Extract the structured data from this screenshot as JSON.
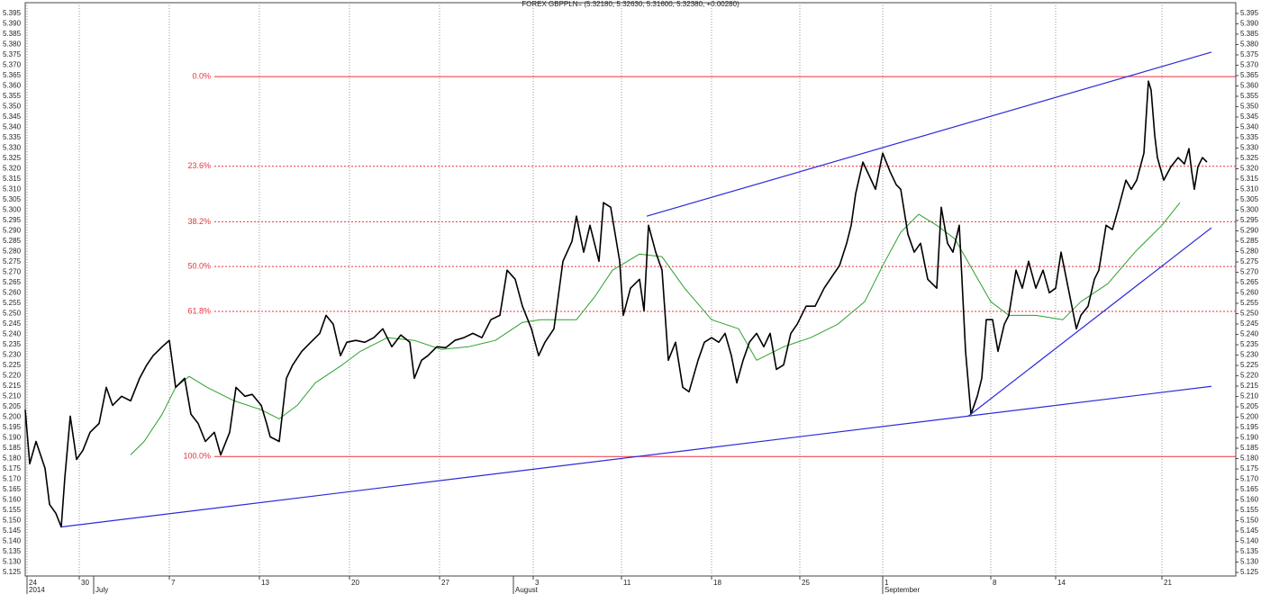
{
  "chart_data": {
    "type": "line",
    "title": "FOREX GBPPLN= (5.32180, 5.32630, 5.31600, 5.32380, +0.00280)",
    "xlim": [
      0,
      134.4
    ],
    "ylim": [
      5.1233,
      5.4002
    ],
    "xticks": [
      {
        "value": 0.2,
        "label": "24"
      },
      {
        "value": 6.0,
        "label": "30"
      },
      {
        "value": 16.0,
        "label": "7"
      },
      {
        "value": 26.0,
        "label": "13"
      },
      {
        "value": 36.0,
        "label": "20"
      },
      {
        "value": 46.0,
        "label": "27"
      },
      {
        "value": 56.4,
        "label": "3"
      },
      {
        "value": 66.2,
        "label": "11"
      },
      {
        "value": 76.2,
        "label": "18"
      },
      {
        "value": 86.0,
        "label": "25"
      },
      {
        "value": 95.2,
        "label": "1"
      },
      {
        "value": 107.2,
        "label": "8"
      },
      {
        "value": 114.4,
        "label": "14"
      },
      {
        "value": 126.2,
        "label": "21"
      }
    ],
    "month_ticks": [
      {
        "value": 0.2,
        "label": "2014"
      },
      {
        "value": 7.6,
        "label": "July"
      },
      {
        "value": 54.2,
        "label": "August"
      },
      {
        "value": 95.2,
        "label": "September"
      }
    ],
    "yticks": [
      {
        "value": 5.125,
        "label": "5.125"
      },
      {
        "value": 5.13,
        "label": "5.130"
      },
      {
        "value": 5.135,
        "label": "5.135"
      },
      {
        "value": 5.14,
        "label": "5.140"
      },
      {
        "value": 5.145,
        "label": "5.145"
      },
      {
        "value": 5.15,
        "label": "5.150"
      },
      {
        "value": 5.155,
        "label": "5.155"
      },
      {
        "value": 5.16,
        "label": "5.160"
      },
      {
        "value": 5.165,
        "label": "5.165"
      },
      {
        "value": 5.17,
        "label": "5.170"
      },
      {
        "value": 5.175,
        "label": "5.175"
      },
      {
        "value": 5.18,
        "label": "5.180"
      },
      {
        "value": 5.185,
        "label": "5.185"
      },
      {
        "value": 5.19,
        "label": "5.190"
      },
      {
        "value": 5.195,
        "label": "5.195"
      },
      {
        "value": 5.2,
        "label": "5.200"
      },
      {
        "value": 5.205,
        "label": "5.205"
      },
      {
        "value": 5.21,
        "label": "5.210"
      },
      {
        "value": 5.215,
        "label": "5.215"
      },
      {
        "value": 5.22,
        "label": "5.220"
      },
      {
        "value": 5.225,
        "label": "5.225"
      },
      {
        "value": 5.23,
        "label": "5.230"
      },
      {
        "value": 5.235,
        "label": "5.235"
      },
      {
        "value": 5.24,
        "label": "5.240"
      },
      {
        "value": 5.245,
        "label": "5.245"
      },
      {
        "value": 5.25,
        "label": "5.250"
      },
      {
        "value": 5.255,
        "label": "5.255"
      },
      {
        "value": 5.26,
        "label": "5.260"
      },
      {
        "value": 5.265,
        "label": "5.265"
      },
      {
        "value": 5.27,
        "label": "5.270"
      },
      {
        "value": 5.275,
        "label": "5.275"
      },
      {
        "value": 5.28,
        "label": "5.280"
      },
      {
        "value": 5.285,
        "label": "5.285"
      },
      {
        "value": 5.29,
        "label": "5.290"
      },
      {
        "value": 5.295,
        "label": "5.295"
      },
      {
        "value": 5.3,
        "label": "5.300"
      },
      {
        "value": 5.305,
        "label": "5.305"
      },
      {
        "value": 5.31,
        "label": "5.310"
      },
      {
        "value": 5.315,
        "label": "5.315"
      },
      {
        "value": 5.32,
        "label": "5.320"
      },
      {
        "value": 5.325,
        "label": "5.325"
      },
      {
        "value": 5.33,
        "label": "5.330"
      },
      {
        "value": 5.335,
        "label": "5.335"
      },
      {
        "value": 5.34,
        "label": "5.340"
      },
      {
        "value": 5.345,
        "label": "5.345"
      },
      {
        "value": 5.35,
        "label": "5.350"
      },
      {
        "value": 5.355,
        "label": "5.355"
      },
      {
        "value": 5.36,
        "label": "5.360"
      },
      {
        "value": 5.365,
        "label": "5.365"
      },
      {
        "value": 5.37,
        "label": "5.370"
      },
      {
        "value": 5.375,
        "label": "5.375"
      },
      {
        "value": 5.38,
        "label": "5.380"
      },
      {
        "value": 5.385,
        "label": "5.385"
      },
      {
        "value": 5.39,
        "label": "5.390"
      },
      {
        "value": 5.395,
        "label": "5.395"
      }
    ],
    "series": [
      {
        "color": "#000000",
        "x": [
          0,
          0.5,
          1.2,
          2.2,
          2.7,
          3.4,
          4.0,
          4.4,
          5.0,
          5.7,
          6.4,
          7.2,
          8.2,
          9.0,
          9.7,
          10.7,
          11.7,
          12.7,
          13.5,
          14.2,
          15.2,
          16.0,
          16.7,
          17.7,
          18.4,
          19.2,
          20.0,
          21.0,
          21.7,
          22.7,
          23.4,
          24.4,
          25.2,
          26.2,
          26.8,
          27.2,
          28.2,
          29.0,
          29.7,
          30.7,
          31.7,
          32.7,
          33.4,
          34.2,
          35.0,
          35.7,
          36.7,
          37.7,
          38.7,
          39.7,
          40.7,
          41.7,
          42.7,
          43.2,
          44.0,
          44.7,
          45.7,
          46.7,
          47.7,
          48.7,
          49.7,
          50.7,
          51.7,
          52.7,
          53.5,
          54.4,
          55.2,
          56.2,
          57.0,
          57.7,
          58.7,
          59.7,
          60.7,
          61.2,
          62.0,
          62.7,
          63.7,
          64.2,
          65.0,
          66.0,
          66.4,
          67.2,
          68.2,
          68.7,
          69.2,
          70.0,
          70.7,
          71.4,
          72.2,
          73.0,
          73.7,
          74.7,
          75.4,
          76.2,
          77.0,
          77.7,
          78.4,
          79.0,
          79.7,
          80.4,
          81.2,
          82.0,
          82.7,
          83.4,
          84.2,
          85.0,
          85.7,
          86.7,
          87.7,
          88.7,
          89.7,
          90.4,
          91.2,
          91.7,
          92.2,
          93.0,
          93.7,
          94.4,
          95.2,
          96.0,
          96.7,
          97.2,
          98.0,
          98.7,
          99.4,
          100.2,
          101.2,
          101.7,
          102.4,
          103.0,
          103.7,
          104.4,
          105.0,
          105.7,
          106.2,
          106.7,
          107.4,
          108.0,
          108.7,
          109.2,
          110.0,
          110.7,
          111.4,
          112.2,
          113.0,
          113.7,
          114.4,
          115.0,
          115.8,
          116.7,
          117.2,
          118.0,
          118.7,
          119.2,
          120.0,
          120.7,
          121.4,
          122.2,
          122.8,
          123.4,
          124.2,
          124.7,
          125.0,
          125.4,
          125.7,
          126.4,
          127.2,
          128.0,
          128.7,
          129.2,
          129.5,
          129.8,
          130.2,
          130.7,
          131.2
        ],
        "values": [
          5.2036,
          5.1775,
          5.1883,
          5.1753,
          5.1579,
          5.1536,
          5.147,
          5.1709,
          5.2005,
          5.1796,
          5.184,
          5.1927,
          5.197,
          5.2144,
          5.2057,
          5.2101,
          5.2079,
          5.2188,
          5.2253,
          5.2297,
          5.234,
          5.2371,
          5.2144,
          5.2188,
          5.2014,
          5.197,
          5.1883,
          5.1927,
          5.1818,
          5.1927,
          5.2144,
          5.2101,
          5.211,
          5.2057,
          5.197,
          5.1905,
          5.1883,
          5.2188,
          5.2253,
          5.2318,
          5.2362,
          5.2405,
          5.2492,
          5.2449,
          5.2297,
          5.2362,
          5.2371,
          5.2362,
          5.2384,
          5.2427,
          5.234,
          5.2397,
          5.2362,
          5.2188,
          5.2275,
          5.2297,
          5.234,
          5.2336,
          5.2371,
          5.2384,
          5.2405,
          5.2384,
          5.2471,
          5.2492,
          5.271,
          5.2666,
          5.2536,
          5.2427,
          5.2297,
          5.2362,
          5.2427,
          5.2753,
          5.2849,
          5.2971,
          5.2797,
          5.2927,
          5.2753,
          5.3036,
          5.3014,
          5.2753,
          5.2492,
          5.2623,
          5.2666,
          5.2514,
          5.2927,
          5.2797,
          5.271,
          5.2275,
          5.2362,
          5.2144,
          5.2123,
          5.2275,
          5.2362,
          5.2384,
          5.2362,
          5.2405,
          5.2297,
          5.2166,
          5.2275,
          5.2362,
          5.2405,
          5.234,
          5.2405,
          5.2231,
          5.2253,
          5.2405,
          5.2449,
          5.2536,
          5.2536,
          5.2623,
          5.2688,
          5.2732,
          5.284,
          5.2927,
          5.308,
          5.3232,
          5.3167,
          5.3101,
          5.3275,
          5.3188,
          5.3123,
          5.3101,
          5.2884,
          5.2797,
          5.284,
          5.2666,
          5.2623,
          5.3014,
          5.284,
          5.2797,
          5.2927,
          5.2318,
          5.2014,
          5.2101,
          5.2188,
          5.2471,
          5.2471,
          5.2318,
          5.2449,
          5.2492,
          5.271,
          5.2623,
          5.2753,
          5.2623,
          5.271,
          5.2601,
          5.2623,
          5.2797,
          5.2623,
          5.2427,
          5.2492,
          5.2536,
          5.2666,
          5.271,
          5.2927,
          5.2906,
          5.3014,
          5.3145,
          5.3101,
          5.3145,
          5.3275,
          5.3623,
          5.358,
          5.3362,
          5.3254,
          5.3145,
          5.321,
          5.3254,
          5.3223,
          5.3297,
          5.3188,
          5.3101,
          5.321,
          5.3254,
          5.3232
        ]
      },
      {
        "color": "#2ca02c",
        "x": [
          11.7,
          13.2,
          15.2,
          16.7,
          18.2,
          20.2,
          23.2,
          26.2,
          28.2,
          30.2,
          32.2,
          35.2,
          37.2,
          40.2,
          43.2,
          46.2,
          49.2,
          52.2,
          55.2,
          57.2,
          61.2,
          63.2,
          65.2,
          68.2,
          70.7,
          73.2,
          76.2,
          79.2,
          81.2,
          84.2,
          87.2,
          90.2,
          93.2,
          95.2,
          97.2,
          99.2,
          101.2,
          103.2,
          105.2,
          107.2,
          109.2,
          112.2,
          115.2,
          117.2,
          120.2,
          123.2,
          126.2,
          128.2
        ],
        "values": [
          5.1818,
          5.1883,
          5.2014,
          5.2144,
          5.2197,
          5.2144,
          5.2079,
          5.2036,
          5.1992,
          5.2057,
          5.2166,
          5.2253,
          5.2318,
          5.2384,
          5.2371,
          5.2327,
          5.234,
          5.2371,
          5.2458,
          5.2471,
          5.2471,
          5.258,
          5.271,
          5.2788,
          5.2775,
          5.2623,
          5.2471,
          5.2427,
          5.2275,
          5.234,
          5.2384,
          5.2449,
          5.2558,
          5.2732,
          5.2893,
          5.298,
          5.2927,
          5.2862,
          5.271,
          5.2558,
          5.2492,
          5.2492,
          5.2471,
          5.2558,
          5.2645,
          5.2797,
          5.2927,
          5.3036
        ]
      }
    ],
    "trendlines": [
      {
        "color": "#2b2bd9",
        "x": [
          4.0,
          131.7
        ],
        "y": [
          5.147,
          5.2149
        ]
      },
      {
        "color": "#2b2bd9",
        "x": [
          69.0,
          131.7
        ],
        "y": [
          5.2971,
          5.3763
        ]
      },
      {
        "color": "#2b2bd9",
        "x": [
          104.7,
          131.7
        ],
        "y": [
          5.2005,
          5.2915
        ]
      }
    ],
    "fib_color": "#e8323e",
    "fib_start": 21.0,
    "fib_levels": [
      {
        "label": "0.0%",
        "value": 5.3645,
        "dashed": false
      },
      {
        "label": "23.6%",
        "value": 5.3212,
        "dashed": true
      },
      {
        "label": "38.2%",
        "value": 5.2944,
        "dashed": true
      },
      {
        "label": "50.0%",
        "value": 5.2728,
        "dashed": true
      },
      {
        "label": "61.8%",
        "value": 5.2511,
        "dashed": true
      },
      {
        "label": "100.0%",
        "value": 5.181,
        "dashed": false
      }
    ],
    "grid": true
  }
}
